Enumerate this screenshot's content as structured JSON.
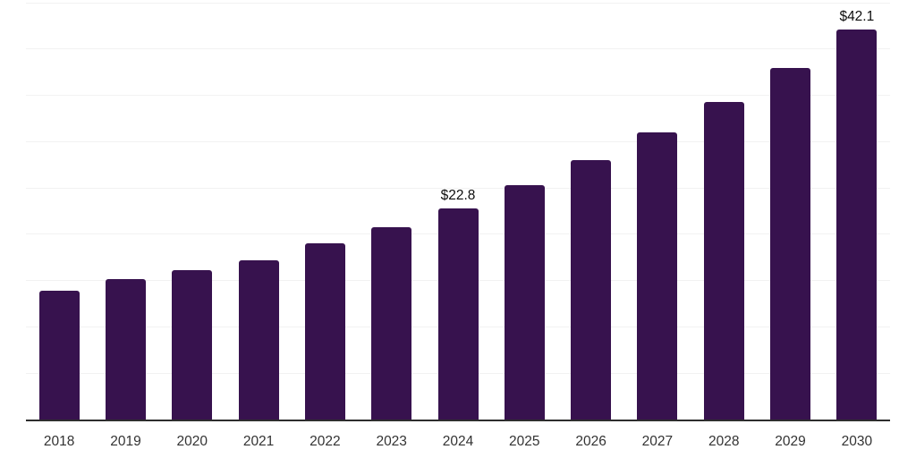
{
  "chart_data": {
    "type": "bar",
    "title": "",
    "xlabel": "",
    "ylabel": "",
    "categories": [
      "2018",
      "2019",
      "2020",
      "2021",
      "2022",
      "2023",
      "2024",
      "2025",
      "2026",
      "2027",
      "2028",
      "2029",
      "2030"
    ],
    "values": [
      13.9,
      15.2,
      16.1,
      17.2,
      19.0,
      20.8,
      22.8,
      25.3,
      28.0,
      31.0,
      34.3,
      38.0,
      42.1
    ],
    "data_labels": {
      "2024": "$22.8",
      "2030": "$42.1"
    },
    "ylim": [
      0,
      45
    ],
    "gridline_step": 5,
    "grid": true,
    "legend": false,
    "colors": {
      "bar": "#37124E",
      "gridline": "#f2f2f2",
      "axis_line": "#2e2e2e",
      "tick_label": "#333333",
      "data_label": "#0d0d0d",
      "background": "#ffffff"
    }
  }
}
